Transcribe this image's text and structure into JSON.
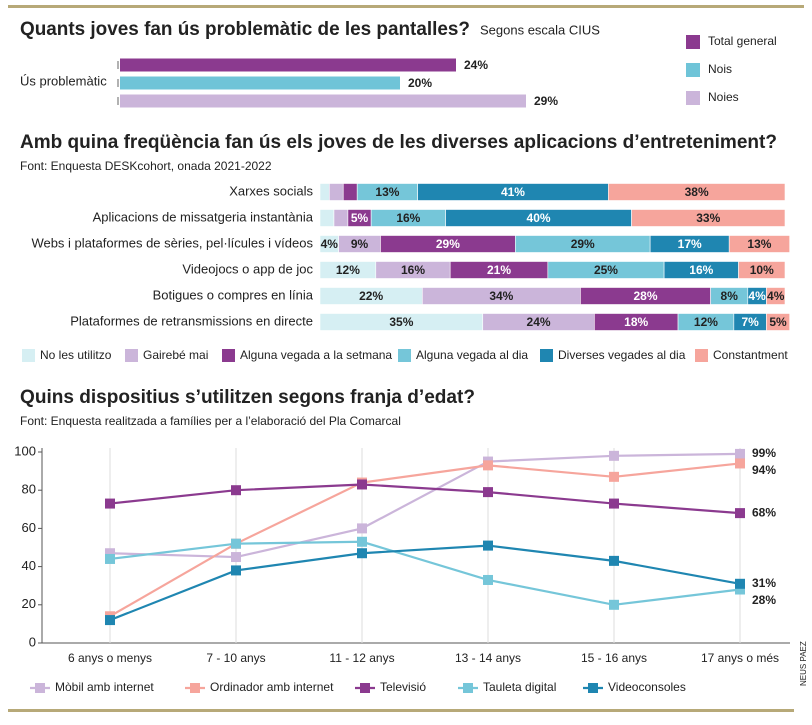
{
  "credit": "NEUS PAEZ",
  "chart_data": [
    {
      "type": "bar",
      "title": "Quants joves fan ús problemàtic de les pantalles?",
      "subtitle": "Segons escala CIUS",
      "categories": [
        "Ús problemàtic"
      ],
      "series": [
        {
          "name": "Total general",
          "color": "#8b3a8f",
          "values": [
            24
          ],
          "value_labels": [
            "24%"
          ]
        },
        {
          "name": "Nois",
          "color": "#6fc4d8",
          "values": [
            20
          ],
          "value_labels": [
            "20%"
          ]
        },
        {
          "name": "Noies",
          "color": "#cbb5da",
          "values": [
            29
          ],
          "value_labels": [
            "29%"
          ]
        }
      ]
    },
    {
      "type": "stacked_bar",
      "title": "Amb quina freqüència fan ús els joves de les diverses aplicacions d’entreteniment?",
      "subtitle": "Font: Enquesta DESKcohort, onada 2021-2022",
      "categories": [
        "Xarxes socials",
        "Aplicacions de missatgeria instantània",
        "Webs i plataformes de sèries, pel·lícules i vídeos",
        "Videojocs o app de joc",
        "Botigues o compres en línia",
        "Plataformes de retransmissions en directe"
      ],
      "series": [
        {
          "name": "No les utilitzo",
          "color": "#d6eff3",
          "values": [
            2,
            3,
            4,
            12,
            22,
            35
          ],
          "value_labels": [
            null,
            null,
            "4%",
            "12%",
            "22%",
            "35%"
          ]
        },
        {
          "name": "Gairebé mai",
          "color": "#cbb5da",
          "values": [
            3,
            3,
            9,
            16,
            34,
            24
          ],
          "value_labels": [
            null,
            null,
            "9%",
            "16%",
            "34%",
            "24%"
          ]
        },
        {
          "name": "Alguna vegada a la setmana",
          "color": "#8b3a8f",
          "values": [
            3,
            5,
            29,
            21,
            28,
            18
          ],
          "value_labels": [
            null,
            "5%",
            "29%",
            "21%",
            "28%",
            "18%"
          ]
        },
        {
          "name": "Alguna vegada al dia",
          "color": "#75c6d9",
          "values": [
            13,
            16,
            29,
            25,
            8,
            12
          ],
          "value_labels": [
            "13%",
            "16%",
            "29%",
            "25%",
            "8%",
            "12%"
          ]
        },
        {
          "name": "Diverses vegades al dia",
          "color": "#1f86b1",
          "values": [
            41,
            40,
            17,
            16,
            4,
            7
          ],
          "value_labels": [
            "41%",
            "40%",
            "17%",
            "16%",
            "4%",
            "7%"
          ]
        },
        {
          "name": "Constantment",
          "color": "#f6a59c",
          "values": [
            38,
            33,
            13,
            10,
            4,
            5
          ],
          "value_labels": [
            "38%",
            "33%",
            "13%",
            "10%",
            "4%",
            "5%"
          ]
        }
      ]
    },
    {
      "type": "line",
      "title": "Quins dispositius s’utilitzen segons franja d’edat?",
      "subtitle": "Font: Enquesta realitzada a famílies per a l’elaboració del Pla Comarcal",
      "categories": [
        "6 anys o menys",
        "7 - 10 anys",
        "11 - 12 anys",
        "13 - 14 anys",
        "15 - 16 anys",
        "17 anys o més"
      ],
      "ylim": [
        0,
        100
      ],
      "yticks": [
        0,
        20,
        40,
        60,
        80,
        100
      ],
      "series": [
        {
          "name": "Mòbil amb internet",
          "color": "#cbb5da",
          "values": [
            47,
            45,
            60,
            95,
            98,
            99
          ],
          "value_labels": [
            null,
            null,
            null,
            null,
            null,
            "99%"
          ]
        },
        {
          "name": "Ordinador amb internet",
          "color": "#f6a59c",
          "values": [
            14,
            52,
            84,
            93,
            87,
            94
          ],
          "value_labels": [
            null,
            null,
            null,
            null,
            null,
            "94%"
          ]
        },
        {
          "name": "Televisió",
          "color": "#8b3a8f",
          "values": [
            73,
            80,
            83,
            79,
            73,
            68
          ],
          "value_labels": [
            null,
            null,
            null,
            null,
            null,
            "68%"
          ]
        },
        {
          "name": "Tauleta digital",
          "color": "#75c6d9",
          "values": [
            44,
            52,
            53,
            33,
            20,
            28
          ],
          "value_labels": [
            null,
            null,
            null,
            null,
            null,
            "28%"
          ]
        },
        {
          "name": "Videoconsoles",
          "color": "#1f86b1",
          "values": [
            12,
            38,
            47,
            51,
            43,
            31
          ],
          "value_labels": [
            null,
            null,
            null,
            null,
            null,
            "31%"
          ]
        }
      ]
    }
  ]
}
